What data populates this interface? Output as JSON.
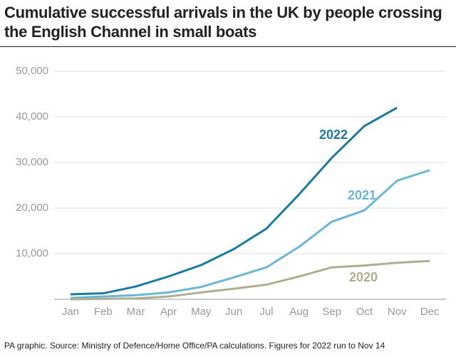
{
  "chart_data": {
    "type": "line",
    "title": "Cumulative successful arrivals in the UK by people crossing the English Channel in small boats",
    "source": "PA graphic. Source: Ministry of Defence/Home Office/PA calculations. Figures for 2022 run to Nov 14",
    "categories": [
      "Jan",
      "Feb",
      "Mar",
      "Apr",
      "May",
      "Jun",
      "Jul",
      "Aug",
      "Sep",
      "Oct",
      "Nov",
      "Dec"
    ],
    "series": [
      {
        "name": "2022",
        "color": "#1a7aa0",
        "values": [
          1100,
          1300,
          2800,
          5000,
          7500,
          11000,
          15500,
          23000,
          31000,
          38000,
          42000,
          null
        ]
      },
      {
        "name": "2021",
        "color": "#6bb6d6",
        "values": [
          300,
          600,
          900,
          1500,
          2700,
          4800,
          7000,
          11500,
          17000,
          19500,
          26000,
          28300
        ]
      },
      {
        "name": "2020",
        "color": "#b0ae90",
        "values": [
          0,
          100,
          200,
          600,
          1500,
          2300,
          3200,
          5000,
          7000,
          7400,
          8000,
          8400
        ]
      }
    ],
    "ylim": [
      0,
      50000
    ],
    "yticks": [
      {
        "value": 10000,
        "label": "10,000"
      },
      {
        "value": 20000,
        "label": "20,000"
      },
      {
        "value": 30000,
        "label": "30,000"
      },
      {
        "value": 40000,
        "label": "40,000"
      },
      {
        "value": 50000,
        "label": "50,000"
      }
    ],
    "grid": true
  }
}
